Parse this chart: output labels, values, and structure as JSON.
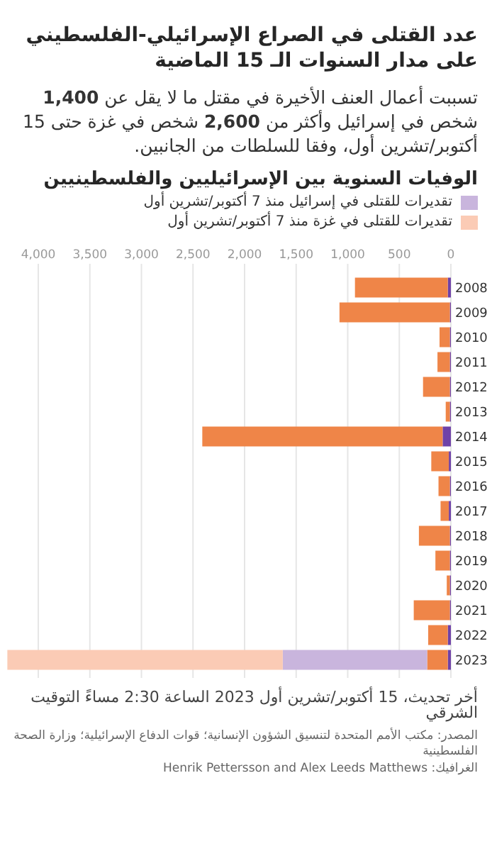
{
  "chart_data": {
    "type": "bar",
    "orientation": "horizontal",
    "stacked": true,
    "grid": "x",
    "legend": "top",
    "title": "عدد القتلى في الصراع الإسرائيلي-الفلسطيني على مدار السنوات الـ 15 الماضية",
    "subtitle": "تسببت أعمال العنف الأخيرة في مقتل ما لا يقل عن 1,400 شخص في إسرائيل وأكثر من 2,600 شخص في غزة حتى 15 أكتوبر/تشرين أول، وفقا للسلطات من الجانبين.",
    "annotations": [
      "الوفيات السنوية بين الإسرائيليين والفلسطينيين",
      "أخر تحديث، 15 أكتوبر/تشرين أول 2023 الساعة 2:30 مساءً التوقيت الشرقي",
      "المصدر: مكتب الأمم المتحدة لتنسيق الشؤون الإنسانية؛ قوات الدفاع الإسرائيلية؛ وزارة الصحة الفلسطينية",
      "الغرافيك: Henrik Pettersson and Alex Leeds Matthews"
    ],
    "categories": [
      "2008",
      "2009",
      "2010",
      "2011",
      "2012",
      "2013",
      "2014",
      "2015",
      "2016",
      "2017",
      "2018",
      "2019",
      "2020",
      "2021",
      "2022",
      "2023"
    ],
    "series": [
      {
        "color": "#6f42a8",
        "values": [
          30,
          10,
          10,
          10,
          10,
          10,
          80,
          20,
          10,
          20,
          10,
          10,
          10,
          10,
          30,
          30
        ]
      },
      {
        "color": "#ef8548",
        "values": [
          900,
          1070,
          100,
          120,
          260,
          40,
          2330,
          170,
          110,
          80,
          300,
          140,
          30,
          350,
          190,
          200
        ]
      },
      {
        "name": "تقديرات للقتلى في إسرائيل منذ 7 أكتوبر/تشرين أول",
        "color": "#c9b5dd",
        "values": [
          null,
          null,
          null,
          null,
          null,
          null,
          null,
          null,
          null,
          null,
          null,
          null,
          null,
          null,
          null,
          1400
        ]
      },
      {
        "name": "تقديرات للقتلى في غزة منذ 7 أكتوبر/تشرين أول",
        "color": "#fbcbb5",
        "values": [
          null,
          null,
          null,
          null,
          null,
          null,
          null,
          null,
          null,
          null,
          null,
          null,
          null,
          null,
          null,
          2670
        ]
      }
    ],
    "xlim": [
      4330,
      0
    ],
    "xticks": [
      {
        "value": 4000,
        "label": "4,000"
      },
      {
        "value": 3500,
        "label": "3,500"
      },
      {
        "value": 3000,
        "label": "3,000"
      },
      {
        "value": 2500,
        "label": "2,500"
      },
      {
        "value": 2000,
        "label": "2,000"
      },
      {
        "value": 1500,
        "label": "1,500"
      },
      {
        "value": 1000,
        "label": "1,000"
      },
      500,
      0
    ]
  }
}
